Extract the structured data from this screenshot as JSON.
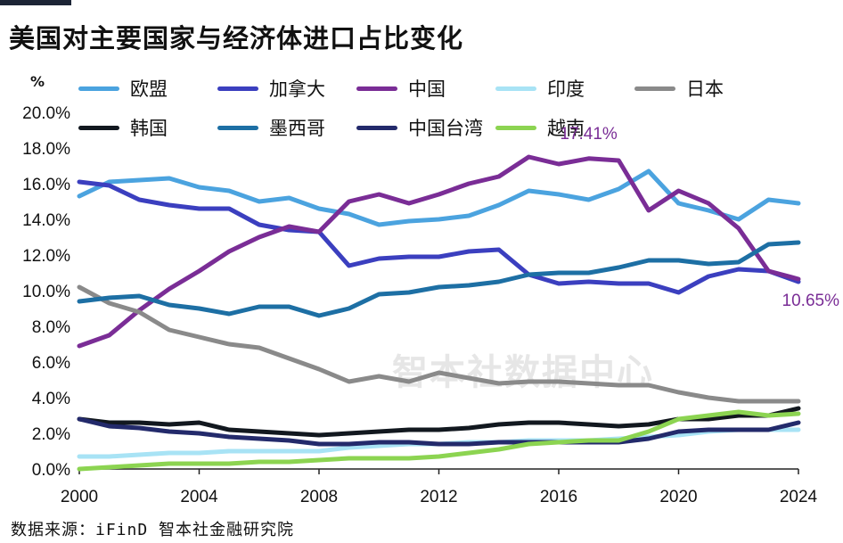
{
  "title": "美国对主要国家与经济体进口占比变化",
  "footer": "数据来源：iFinD 智本社金融研究院",
  "watermark": "智本社数据中心",
  "chart_data": {
    "type": "line",
    "ylabel": "%",
    "x": [
      2000,
      2001,
      2002,
      2003,
      2004,
      2005,
      2006,
      2007,
      2008,
      2009,
      2010,
      2011,
      2012,
      2013,
      2014,
      2015,
      2016,
      2017,
      2018,
      2019,
      2020,
      2021,
      2022,
      2023,
      2024
    ],
    "xticks": [
      2000,
      2004,
      2008,
      2012,
      2016,
      2020,
      2024
    ],
    "xlim": [
      2000,
      2024
    ],
    "yticks": [
      "0.0%",
      "2.0%",
      "4.0%",
      "6.0%",
      "8.0%",
      "10.0%",
      "12.0%",
      "14.0%",
      "16.0%",
      "18.0%",
      "20.0%"
    ],
    "ylim": [
      0,
      20
    ],
    "grid": false,
    "legend": "top",
    "series": [
      {
        "name": "欧盟",
        "color": "#4ba3df",
        "values": [
          15.3,
          16.1,
          16.2,
          16.3,
          15.8,
          15.6,
          15.0,
          15.2,
          14.6,
          14.3,
          13.7,
          13.9,
          14.0,
          14.2,
          14.8,
          15.6,
          15.4,
          15.1,
          15.7,
          16.7,
          14.9,
          14.5,
          14.0,
          15.1,
          14.9
        ]
      },
      {
        "name": "加拿大",
        "color": "#3b3fbf",
        "values": [
          16.1,
          15.9,
          15.1,
          14.8,
          14.6,
          14.6,
          13.7,
          13.4,
          13.3,
          11.4,
          11.8,
          11.9,
          11.9,
          12.2,
          12.3,
          10.9,
          10.4,
          10.5,
          10.4,
          10.4,
          9.9,
          10.8,
          11.2,
          11.1,
          10.5
        ]
      },
      {
        "name": "中国",
        "color": "#7a2d96",
        "values": [
          6.9,
          7.5,
          8.9,
          10.1,
          11.1,
          12.2,
          13.0,
          13.6,
          13.3,
          15.0,
          15.4,
          14.9,
          15.4,
          16.0,
          16.4,
          17.5,
          17.1,
          17.41,
          17.3,
          14.5,
          15.6,
          14.9,
          13.5,
          11.1,
          10.65
        ]
      },
      {
        "name": "印度",
        "color": "#a8e3f5",
        "values": [
          0.7,
          0.7,
          0.8,
          0.9,
          0.9,
          1.0,
          1.0,
          1.0,
          1.0,
          1.2,
          1.3,
          1.4,
          1.4,
          1.5,
          1.5,
          1.6,
          1.6,
          1.6,
          1.7,
          1.8,
          1.9,
          2.1,
          2.2,
          2.2,
          2.2
        ]
      },
      {
        "name": "日本",
        "color": "#8a8a8a",
        "values": [
          10.2,
          9.3,
          8.8,
          7.8,
          7.4,
          7.0,
          6.8,
          6.2,
          5.6,
          4.9,
          5.2,
          4.9,
          5.4,
          5.1,
          4.8,
          4.9,
          4.9,
          4.8,
          4.7,
          4.7,
          4.3,
          4.0,
          3.8,
          3.8,
          3.8
        ]
      },
      {
        "name": "韩国",
        "color": "#12181f",
        "values": [
          2.8,
          2.6,
          2.6,
          2.5,
          2.6,
          2.2,
          2.1,
          2.0,
          1.9,
          2.0,
          2.1,
          2.2,
          2.2,
          2.3,
          2.5,
          2.6,
          2.6,
          2.5,
          2.4,
          2.5,
          2.8,
          2.8,
          3.0,
          3.0,
          3.4
        ]
      },
      {
        "name": "墨西哥",
        "color": "#1d6fa4",
        "values": [
          9.4,
          9.6,
          9.7,
          9.2,
          9.0,
          8.7,
          9.1,
          9.1,
          8.6,
          9.0,
          9.8,
          9.9,
          10.2,
          10.3,
          10.5,
          10.9,
          11.0,
          11.0,
          11.3,
          11.7,
          11.7,
          11.5,
          11.6,
          12.6,
          12.7
        ]
      },
      {
        "name": "中国台湾",
        "color": "#232a6b",
        "values": [
          2.8,
          2.4,
          2.3,
          2.1,
          2.0,
          1.8,
          1.7,
          1.6,
          1.4,
          1.4,
          1.5,
          1.5,
          1.4,
          1.4,
          1.5,
          1.5,
          1.5,
          1.5,
          1.5,
          1.7,
          2.1,
          2.2,
          2.2,
          2.2,
          2.6
        ]
      },
      {
        "name": "越南",
        "color": "#8cd451",
        "values": [
          0.0,
          0.1,
          0.2,
          0.3,
          0.3,
          0.3,
          0.4,
          0.4,
          0.5,
          0.6,
          0.6,
          0.6,
          0.7,
          0.9,
          1.1,
          1.4,
          1.5,
          1.6,
          1.6,
          2.1,
          2.8,
          3.0,
          3.2,
          3.0,
          3.1
        ]
      }
    ],
    "annotations": [
      {
        "text": "17.41%",
        "series": "中国",
        "x": 2017,
        "y": 17.41
      },
      {
        "text": "10.65%",
        "series": "中国",
        "x": 2024,
        "y": 10.65
      }
    ]
  }
}
